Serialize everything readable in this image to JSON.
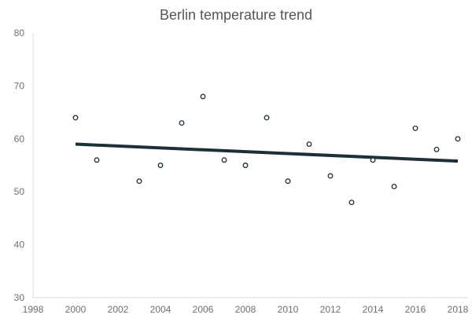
{
  "chart_data": {
    "type": "scatter",
    "title": "Berlin temperature trend",
    "xlabel": "",
    "ylabel": "",
    "xlim": [
      1998,
      2018
    ],
    "ylim": [
      30,
      80
    ],
    "x_ticks": [
      1998,
      2000,
      2002,
      2004,
      2006,
      2008,
      2010,
      2012,
      2014,
      2016,
      2018
    ],
    "y_ticks": [
      30,
      40,
      50,
      60,
      70,
      80
    ],
    "grid": false,
    "legend": "none",
    "series": [
      {
        "x": [
          2000,
          2001,
          2003,
          2004,
          2005,
          2006,
          2007,
          2008,
          2009,
          2010,
          2011,
          2012,
          2013,
          2014,
          2015,
          2016,
          2017,
          2018
        ],
        "y": [
          64,
          56,
          52,
          55,
          63,
          68,
          56,
          55,
          64,
          52,
          59,
          53,
          48,
          56,
          51,
          62,
          58,
          60
        ]
      }
    ],
    "trendline": {
      "type": "linear",
      "x": [
        2000,
        2018
      ],
      "y": [
        59,
        55.8
      ],
      "color": "#1c3037"
    },
    "marker_color": "#1f3038"
  }
}
